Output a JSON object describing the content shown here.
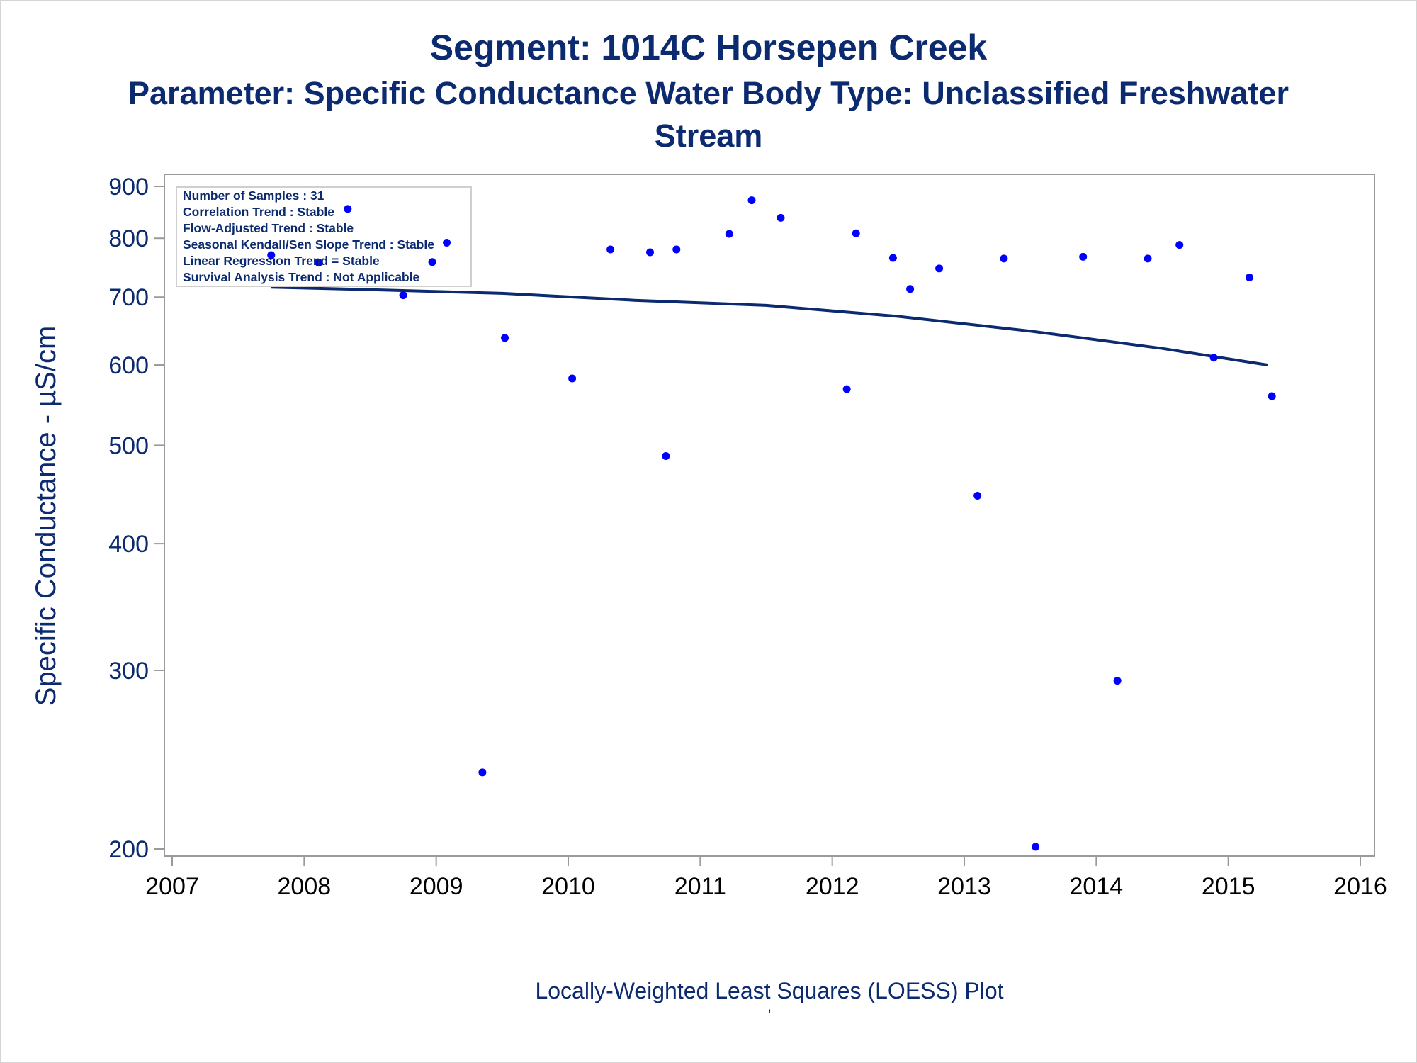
{
  "titles": {
    "line1": "Segment: 1014C  Horsepen Creek",
    "line2": "Parameter: Specific Conductance   Water Body Type: Unclassified Freshwater",
    "line3": "Stream"
  },
  "footnotes": {
    "line1": "Locally-Weighted Least Squares (LOESS) Plot",
    "line2": "'"
  },
  "colors": {
    "title": "#0b2a6f",
    "points": "#0000ff",
    "loess": "#0b2a6f",
    "axis": "#9a9a9a"
  },
  "chart_data": {
    "type": "scatter",
    "scale_y": "log",
    "ylabel": "Specific Conductance -  µS/cm",
    "xlabel": "",
    "xlim": [
      2007,
      2016
    ],
    "ylim": [
      195,
      930
    ],
    "x_ticks": [
      2007,
      2008,
      2009,
      2010,
      2011,
      2012,
      2013,
      2014,
      2015,
      2016
    ],
    "y_ticks": [
      200,
      300,
      400,
      500,
      600,
      700,
      800,
      900
    ],
    "grid": false,
    "legend": {
      "placement": "top-left",
      "entries": [
        "Number of Samples : 31",
        "Correlation Trend : Stable",
        "Flow-Adjusted Trend : Stable",
        "Seasonal Kendall/Sen Slope Trend : Stable",
        "Linear Regression Trend = Stable",
        "Survival Analysis Trend : Not Applicable"
      ]
    },
    "series": [
      {
        "type": "scatter",
        "points": [
          {
            "x": 2007.75,
            "y": 770
          },
          {
            "x": 2008.11,
            "y": 757
          },
          {
            "x": 2008.33,
            "y": 855
          },
          {
            "x": 2008.75,
            "y": 703
          },
          {
            "x": 2008.97,
            "y": 758
          },
          {
            "x": 2009.08,
            "y": 792
          },
          {
            "x": 2009.35,
            "y": 238
          },
          {
            "x": 2009.52,
            "y": 638
          },
          {
            "x": 2010.03,
            "y": 582
          },
          {
            "x": 2010.32,
            "y": 780
          },
          {
            "x": 2010.62,
            "y": 775
          },
          {
            "x": 2010.74,
            "y": 488
          },
          {
            "x": 2010.82,
            "y": 780
          },
          {
            "x": 2011.22,
            "y": 808
          },
          {
            "x": 2011.39,
            "y": 872
          },
          {
            "x": 2011.61,
            "y": 838
          },
          {
            "x": 2012.11,
            "y": 568
          },
          {
            "x": 2012.18,
            "y": 809
          },
          {
            "x": 2012.46,
            "y": 765
          },
          {
            "x": 2012.59,
            "y": 713
          },
          {
            "x": 2012.81,
            "y": 747
          },
          {
            "x": 2013.1,
            "y": 446
          },
          {
            "x": 2013.3,
            "y": 764
          },
          {
            "x": 2013.54,
            "y": 201
          },
          {
            "x": 2013.9,
            "y": 767
          },
          {
            "x": 2014.16,
            "y": 293
          },
          {
            "x": 2014.39,
            "y": 764
          },
          {
            "x": 2014.63,
            "y": 788
          },
          {
            "x": 2014.89,
            "y": 610
          },
          {
            "x": 2015.16,
            "y": 732
          },
          {
            "x": 2015.33,
            "y": 559
          }
        ]
      },
      {
        "type": "line",
        "points": [
          {
            "x": 2007.75,
            "y": 716
          },
          {
            "x": 2008.5,
            "y": 712
          },
          {
            "x": 2009.5,
            "y": 706
          },
          {
            "x": 2010.5,
            "y": 695
          },
          {
            "x": 2011.5,
            "y": 687
          },
          {
            "x": 2012.5,
            "y": 670
          },
          {
            "x": 2013.5,
            "y": 648
          },
          {
            "x": 2014.5,
            "y": 623
          },
          {
            "x": 2015.3,
            "y": 600
          }
        ]
      }
    ]
  }
}
